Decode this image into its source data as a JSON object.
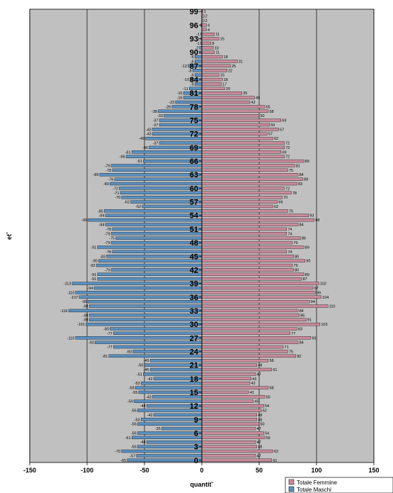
{
  "chart_data": {
    "type": "bar",
    "orientation": "horizontal",
    "title": "",
    "xlabel": "quantit˘",
    "ylabel": "et˘",
    "xlim": [
      -150,
      150
    ],
    "xticks": [
      -150,
      -100,
      -50,
      0,
      50,
      100,
      150
    ],
    "age_ticks": [
      0,
      3,
      6,
      9,
      12,
      15,
      18,
      21,
      24,
      27,
      30,
      33,
      36,
      39,
      42,
      45,
      48,
      51,
      54,
      57,
      60,
      63,
      66,
      69,
      72,
      75,
      78,
      81,
      84,
      87,
      90,
      93,
      96,
      99
    ],
    "grid": true,
    "legend_position": "bottom-right",
    "categories": [
      0,
      1,
      2,
      3,
      4,
      5,
      6,
      7,
      8,
      9,
      10,
      11,
      12,
      13,
      14,
      15,
      16,
      17,
      18,
      19,
      20,
      21,
      22,
      23,
      24,
      25,
      26,
      27,
      28,
      29,
      30,
      31,
      32,
      33,
      34,
      35,
      36,
      37,
      38,
      39,
      40,
      41,
      42,
      43,
      44,
      45,
      46,
      47,
      48,
      49,
      50,
      51,
      52,
      53,
      54,
      55,
      56,
      57,
      58,
      59,
      60,
      61,
      62,
      63,
      64,
      65,
      66,
      67,
      68,
      69,
      70,
      71,
      72,
      73,
      74,
      75,
      76,
      77,
      78,
      79,
      80,
      81,
      82,
      83,
      84,
      85,
      86,
      87,
      88,
      89,
      90,
      91,
      92,
      93,
      94,
      95,
      96,
      97,
      98,
      99
    ],
    "series": [
      {
        "name": "Totale Femmine",
        "color": "#c88a9a",
        "values": [
          61,
          47,
          62,
          48,
          47,
          55,
          54,
          47,
          50,
          48,
          48,
          52,
          54,
          45,
          55,
          41,
          58,
          42,
          43,
          47,
          61,
          48,
          58,
          82,
          75,
          71,
          84,
          95,
          77,
          83,
          103,
          91,
          85,
          84,
          110,
          94,
          104,
          99,
          97,
          102,
          87,
          89,
          80,
          79,
          90,
          80,
          74,
          89,
          79,
          86,
          74,
          74,
          84,
          98,
          93,
          75,
          62,
          66,
          70,
          78,
          72,
          83,
          88,
          84,
          75,
          81,
          89,
          72,
          69,
          72,
          72,
          62,
          57,
          67,
          59,
          69,
          50,
          58,
          55,
          42,
          46,
          35,
          20,
          17,
          18,
          15,
          22,
          25,
          31,
          18,
          11,
          10,
          8,
          15,
          11,
          4,
          4,
          2,
          2,
          1
        ]
      },
      {
        "name": "Totale Maschi",
        "color": "#5a8fbf",
        "values": [
          -65,
          -57,
          -70,
          -56,
          -48,
          -61,
          -56,
          -35,
          -56,
          -53,
          -42,
          -56,
          -48,
          -59,
          -43,
          -55,
          -58,
          -53,
          -42,
          -51,
          -45,
          -50,
          -45,
          -81,
          -60,
          -77,
          -93,
          -110,
          -77,
          -80,
          -101,
          -98,
          -98,
          -116,
          -98,
          -99,
          -107,
          -110,
          -94,
          -113,
          -91,
          -91,
          -79,
          -92,
          -90,
          -83,
          -78,
          -91,
          -79,
          -75,
          -79,
          -78,
          -84,
          -99,
          -84,
          -85,
          -52,
          -62,
          -70,
          -71,
          -72,
          -80,
          -76,
          -89,
          -78,
          -79,
          -51,
          -66,
          -61,
          -46,
          -37,
          -49,
          -43,
          -43,
          -37,
          -37,
          -33,
          -38,
          -26,
          -23,
          -16,
          -16,
          -11,
          -6,
          -10,
          -6,
          -8,
          -12,
          -6,
          -6,
          -2,
          -2,
          -1,
          -1,
          -1,
          0,
          -1,
          0,
          0,
          0
        ]
      }
    ]
  }
}
